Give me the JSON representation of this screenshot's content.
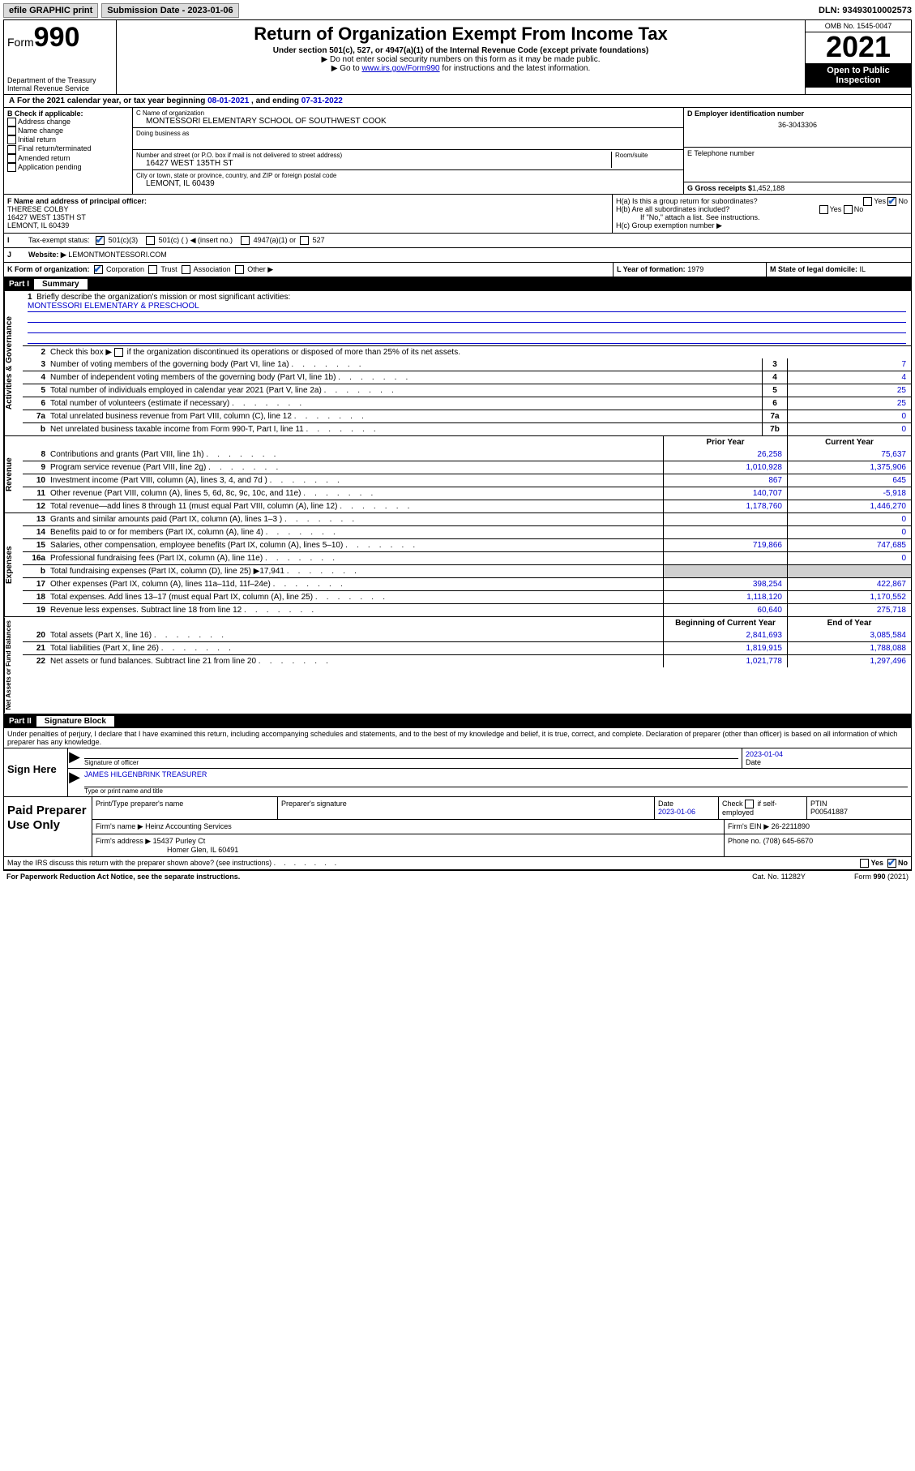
{
  "colors": {
    "link": "#0000cc",
    "black": "#000000",
    "white": "#ffffff",
    "btn_bg": "#dcdcdc",
    "shade": "#d0d0d0",
    "check": "#2060c0"
  },
  "topbar": {
    "efile_label": "efile GRAPHIC print",
    "submission_label": "Submission Date - 2023-01-06",
    "dln_label": "DLN: 93493010002573"
  },
  "header": {
    "form_prefix": "Form",
    "form_no": "990",
    "dept": "Department of the Treasury",
    "irs": "Internal Revenue Service",
    "title": "Return of Organization Exempt From Income Tax",
    "sub1": "Under section 501(c), 527, or 4947(a)(1) of the Internal Revenue Code (except private foundations)",
    "sub2": "▶ Do not enter social security numbers on this form as it may be made public.",
    "sub3_pre": "▶ Go to ",
    "sub3_link": "www.irs.gov/Form990",
    "sub3_post": " for instructions and the latest information.",
    "omb": "OMB No. 1545-0047",
    "year": "2021",
    "open": "Open to Public Inspection"
  },
  "A": {
    "text_pre": "For the 2021 calendar year, or tax year beginning ",
    "begin": "08-01-2021",
    "mid": " , and ending ",
    "end": "07-31-2022"
  },
  "B": {
    "label": "B Check if applicable:",
    "opts": [
      "Address change",
      "Name change",
      "Initial return",
      "Final return/terminated",
      "Amended return",
      "Application pending"
    ]
  },
  "C": {
    "name_lbl": "C Name of organization",
    "name": "MONTESSORI ELEMENTARY SCHOOL OF SOUTHWEST COOK",
    "dba_lbl": "Doing business as",
    "street_lbl": "Number and street (or P.O. box if mail is not delivered to street address)",
    "room_lbl": "Room/suite",
    "street": "16427 WEST 135TH ST",
    "city_lbl": "City or town, state or province, country, and ZIP or foreign postal code",
    "city": "LEMONT, IL  60439"
  },
  "D": {
    "lbl": "D Employer identification number",
    "val": "36-3043306"
  },
  "E": {
    "lbl": "E Telephone number",
    "val": ""
  },
  "G": {
    "lbl": "G Gross receipts $",
    "val": "1,452,188"
  },
  "F": {
    "lbl": "F  Name and address of principal officer:",
    "name": "THERESE COLBY",
    "street": "16427 WEST 135TH ST",
    "city": "LEMONT, IL  60439"
  },
  "H": {
    "a": "H(a)  Is this a group return for subordinates?",
    "b": "H(b)  Are all subordinates included?",
    "b_note": "If \"No,\" attach a list. See instructions.",
    "c": "H(c)  Group exemption number ▶",
    "yes": "Yes",
    "no": "No"
  },
  "I": {
    "lbl": "Tax-exempt status:",
    "o1": "501(c)(3)",
    "o2": "501(c) (  ) ◀ (insert no.)",
    "o3": "4947(a)(1) or",
    "o4": "527"
  },
  "J": {
    "lbl": "Website: ▶",
    "val": "LEMONTMONTESSORI.COM"
  },
  "K": {
    "lbl": "K Form of organization:",
    "o1": "Corporation",
    "o2": "Trust",
    "o3": "Association",
    "o4": "Other ▶"
  },
  "L": {
    "lbl": "L Year of formation:",
    "val": "1979"
  },
  "M": {
    "lbl": "M State of legal domicile:",
    "val": "IL"
  },
  "partI": {
    "no": "Part I",
    "title": "Summary",
    "line1_lbl": "Briefly describe the organization's mission or most significant activities:",
    "mission": "MONTESSORI ELEMENTARY & PRESCHOOL",
    "line2_lbl": "Check this box ▶",
    "line2_post": " if the organization discontinued its operations or disposed of more than 25% of its net assets."
  },
  "gov_tab": "Activities & Governance",
  "rev_tab": "Revenue",
  "exp_tab": "Expenses",
  "net_tab": "Net Assets or Fund Balances",
  "gov_lines": [
    {
      "n": "3",
      "d": "Number of voting members of the governing body (Part VI, line 1a)",
      "box": "3",
      "v": "7"
    },
    {
      "n": "4",
      "d": "Number of independent voting members of the governing body (Part VI, line 1b)",
      "box": "4",
      "v": "4"
    },
    {
      "n": "5",
      "d": "Total number of individuals employed in calendar year 2021 (Part V, line 2a)",
      "box": "5",
      "v": "25"
    },
    {
      "n": "6",
      "d": "Total number of volunteers (estimate if necessary)",
      "box": "6",
      "v": "25"
    },
    {
      "n": "7a",
      "d": "Total unrelated business revenue from Part VIII, column (C), line 12",
      "box": "7a",
      "v": "0"
    },
    {
      "n": "b",
      "d": "Net unrelated business taxable income from Form 990-T, Part I, line 11",
      "box": "7b",
      "v": "0"
    }
  ],
  "two_col_hdr": {
    "py": "Prior Year",
    "cy": "Current Year"
  },
  "rev_lines": [
    {
      "n": "8",
      "d": "Contributions and grants (Part VIII, line 1h)",
      "py": "26,258",
      "cy": "75,637"
    },
    {
      "n": "9",
      "d": "Program service revenue (Part VIII, line 2g)",
      "py": "1,010,928",
      "cy": "1,375,906"
    },
    {
      "n": "10",
      "d": "Investment income (Part VIII, column (A), lines 3, 4, and 7d )",
      "py": "867",
      "cy": "645"
    },
    {
      "n": "11",
      "d": "Other revenue (Part VIII, column (A), lines 5, 6d, 8c, 9c, 10c, and 11e)",
      "py": "140,707",
      "cy": "-5,918"
    },
    {
      "n": "12",
      "d": "Total revenue—add lines 8 through 11 (must equal Part VIII, column (A), line 12)",
      "py": "1,178,760",
      "cy": "1,446,270"
    }
  ],
  "exp_lines": [
    {
      "n": "13",
      "d": "Grants and similar amounts paid (Part IX, column (A), lines 1–3 )",
      "py": "",
      "cy": "0"
    },
    {
      "n": "14",
      "d": "Benefits paid to or for members (Part IX, column (A), line 4)",
      "py": "",
      "cy": "0"
    },
    {
      "n": "15",
      "d": "Salaries, other compensation, employee benefits (Part IX, column (A), lines 5–10)",
      "py": "719,866",
      "cy": "747,685"
    },
    {
      "n": "16a",
      "d": "Professional fundraising fees (Part IX, column (A), line 11e)",
      "py": "",
      "cy": "0"
    },
    {
      "n": "b",
      "d": "Total fundraising expenses (Part IX, column (D), line 25) ▶17,941",
      "py": "shade",
      "cy": "shade"
    },
    {
      "n": "17",
      "d": "Other expenses (Part IX, column (A), lines 11a–11d, 11f–24e)",
      "py": "398,254",
      "cy": "422,867"
    },
    {
      "n": "18",
      "d": "Total expenses. Add lines 13–17 (must equal Part IX, column (A), line 25)",
      "py": "1,118,120",
      "cy": "1,170,552"
    },
    {
      "n": "19",
      "d": "Revenue less expenses. Subtract line 18 from line 12",
      "py": "60,640",
      "cy": "275,718"
    }
  ],
  "net_hdr": {
    "py": "Beginning of Current Year",
    "cy": "End of Year"
  },
  "net_lines": [
    {
      "n": "20",
      "d": "Total assets (Part X, line 16)",
      "py": "2,841,693",
      "cy": "3,085,584"
    },
    {
      "n": "21",
      "d": "Total liabilities (Part X, line 26)",
      "py": "1,819,915",
      "cy": "1,788,088"
    },
    {
      "n": "22",
      "d": "Net assets or fund balances. Subtract line 21 from line 20",
      "py": "1,021,778",
      "cy": "1,297,496"
    }
  ],
  "partII": {
    "no": "Part II",
    "title": "Signature Block",
    "decl": "Under penalties of perjury, I declare that I have examined this return, including accompanying schedules and statements, and to the best of my knowledge and belief, it is true, correct, and complete. Declaration of preparer (other than officer) is based on all information of which preparer has any knowledge."
  },
  "sign": {
    "lbl": "Sign Here",
    "sig_lbl": "Signature of officer",
    "date_lbl": "Date",
    "date": "2023-01-04",
    "name": "JAMES HILGENBRINK  TREASURER",
    "name_lbl": "Type or print name and title"
  },
  "prep": {
    "lbl": "Paid Preparer Use Only",
    "h1": "Print/Type preparer's name",
    "h2": "Preparer's signature",
    "h3": "Date",
    "h3v": "2023-01-06",
    "h4": "Check",
    "h4b": "if self-employed",
    "h5": "PTIN",
    "h5v": "P00541887",
    "firm_name_lbl": "Firm's name    ▶",
    "firm_name": "Heinz Accounting Services",
    "firm_ein_lbl": "Firm's EIN ▶",
    "firm_ein": "26-2211890",
    "firm_addr_lbl": "Firm's address ▶",
    "firm_addr1": "15437 Purley Ct",
    "firm_addr2": "Homer Glen, IL  60491",
    "phone_lbl": "Phone no.",
    "phone": "(708) 645-6670"
  },
  "may_irs": "May the IRS discuss this return with the preparer shown above? (see instructions)",
  "footer": {
    "pra": "For Paperwork Reduction Act Notice, see the separate instructions.",
    "cat": "Cat. No. 11282Y",
    "form": "Form 990 (2021)"
  }
}
